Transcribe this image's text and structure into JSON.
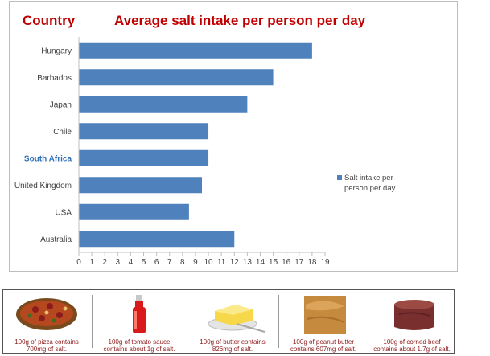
{
  "chart_data": {
    "type": "bar",
    "orientation": "horizontal",
    "title": "Average salt intake per person per day",
    "category_header": "Country",
    "categories": [
      "Hungary",
      "Barbados",
      "Japan",
      "Chile",
      "South Africa",
      "United Kingdom",
      "USA",
      "Australia"
    ],
    "highlighted_category": "South Africa",
    "series": [
      {
        "name": "Salt intake per person per day",
        "values": [
          18,
          15,
          13,
          10,
          10,
          9.5,
          8.5,
          12
        ],
        "color": "#4f81bd"
      }
    ],
    "x_ticks": [
      "0",
      "1",
      "2",
      "3",
      "4",
      "5",
      "6",
      "7",
      "8",
      "9",
      "10",
      "11",
      "12",
      "13",
      "14",
      "15",
      "16",
      "17",
      "18",
      "19"
    ],
    "xlim": [
      0,
      19
    ],
    "grid": false,
    "legend_position": "right"
  },
  "colors": {
    "title": "#c00000",
    "highlight_label": "#2f6fb4",
    "caption": "#8b1a1a"
  },
  "foods": [
    {
      "icon": "pizza-icon",
      "caption_lines": [
        "100g of pizza contains",
        "700mg of salt."
      ]
    },
    {
      "icon": "tomato-sauce-bottle-icon",
      "caption_lines": [
        "100g of tomato sauce",
        "contains about 1g of salt."
      ]
    },
    {
      "icon": "butter-icon",
      "caption_lines": [
        "100g of butter contains",
        "826mg of salt."
      ]
    },
    {
      "icon": "peanut-butter-icon",
      "caption_lines": [
        "100g of peanut butter",
        "contains 607mg of salt."
      ]
    },
    {
      "icon": "corned-beef-icon",
      "caption_lines": [
        "100g of corned beef",
        "contains about 1.7g of salt."
      ]
    }
  ]
}
